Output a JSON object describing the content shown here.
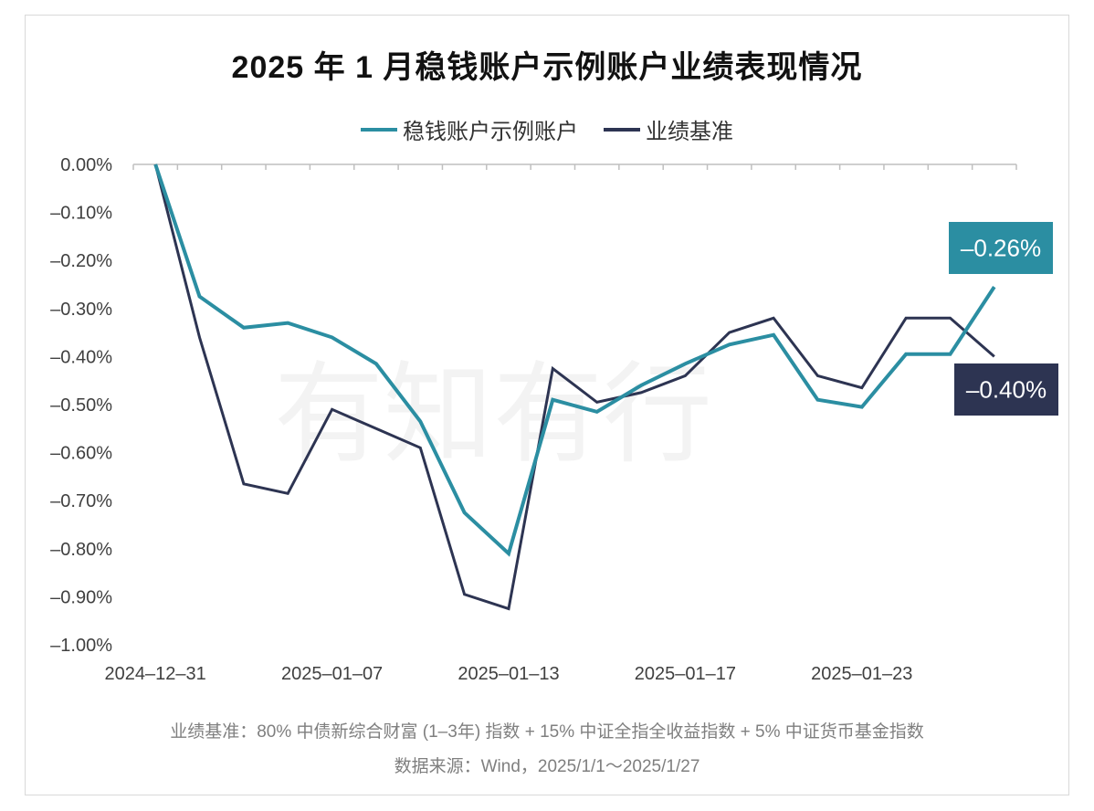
{
  "title": "2025 年 1 月稳钱账户示例账户业绩表现情况",
  "watermark": "有知有行",
  "footnotes": {
    "benchmark": "业绩基准：80% 中债新综合财富 (1–3年) 指数 + 15% 中证全指全收益指数 + 5% 中证货币基金指数",
    "source": "数据来源：Wind，2025/1/1～2025/1/27"
  },
  "colors": {
    "account": "#2b8ea2",
    "benchmark": "#2d3452",
    "axis": "#bfbfbf"
  },
  "chart_data": {
    "type": "line",
    "title": "2025 年 1 月稳钱账户示例账户业绩表现情况",
    "ylabel": "",
    "xlabel": "",
    "ylim": [
      -1.0,
      0.0
    ],
    "y_ticks": [
      "0.00%",
      "–0.10%",
      "–0.20%",
      "–0.30%",
      "–0.40%",
      "–0.50%",
      "–0.60%",
      "–0.70%",
      "–0.80%",
      "–0.90%",
      "–1.00%"
    ],
    "x": [
      "2024-12-31",
      "2025-01-02",
      "2025-01-03",
      "2025-01-06",
      "2025-01-07",
      "2025-01-08",
      "2025-01-09",
      "2025-01-10",
      "2025-01-13",
      "2025-01-14",
      "2025-01-15",
      "2025-01-16",
      "2025-01-17",
      "2025-01-20",
      "2025-01-21",
      "2025-01-22",
      "2025-01-23",
      "2025-01-24",
      "2025-01-26",
      "2025-01-27"
    ],
    "x_tick_labels": [
      {
        "index": 0,
        "label": "2024–12–31"
      },
      {
        "index": 4,
        "label": "2025–01–07"
      },
      {
        "index": 8,
        "label": "2025–01–13"
      },
      {
        "index": 12,
        "label": "2025–01–17"
      },
      {
        "index": 16,
        "label": "2025–01–23"
      }
    ],
    "grid": false,
    "legend_position": "top-center",
    "series": [
      {
        "name": "稳钱账户示例账户",
        "color": "#2b8ea2",
        "values": [
          0.0,
          -0.275,
          -0.34,
          -0.33,
          -0.36,
          -0.415,
          -0.535,
          -0.725,
          -0.81,
          -0.49,
          -0.515,
          -0.46,
          -0.415,
          -0.375,
          -0.355,
          -0.49,
          -0.505,
          -0.395,
          -0.395,
          -0.255
        ],
        "end_label": "–0.26%"
      },
      {
        "name": "业绩基准",
        "color": "#2d3452",
        "values": [
          0.0,
          -0.36,
          -0.665,
          -0.685,
          -0.51,
          -0.55,
          -0.59,
          -0.895,
          -0.925,
          -0.425,
          -0.495,
          -0.475,
          -0.44,
          -0.35,
          -0.32,
          -0.44,
          -0.465,
          -0.32,
          -0.32,
          -0.4
        ],
        "end_label": "–0.40%"
      }
    ]
  }
}
